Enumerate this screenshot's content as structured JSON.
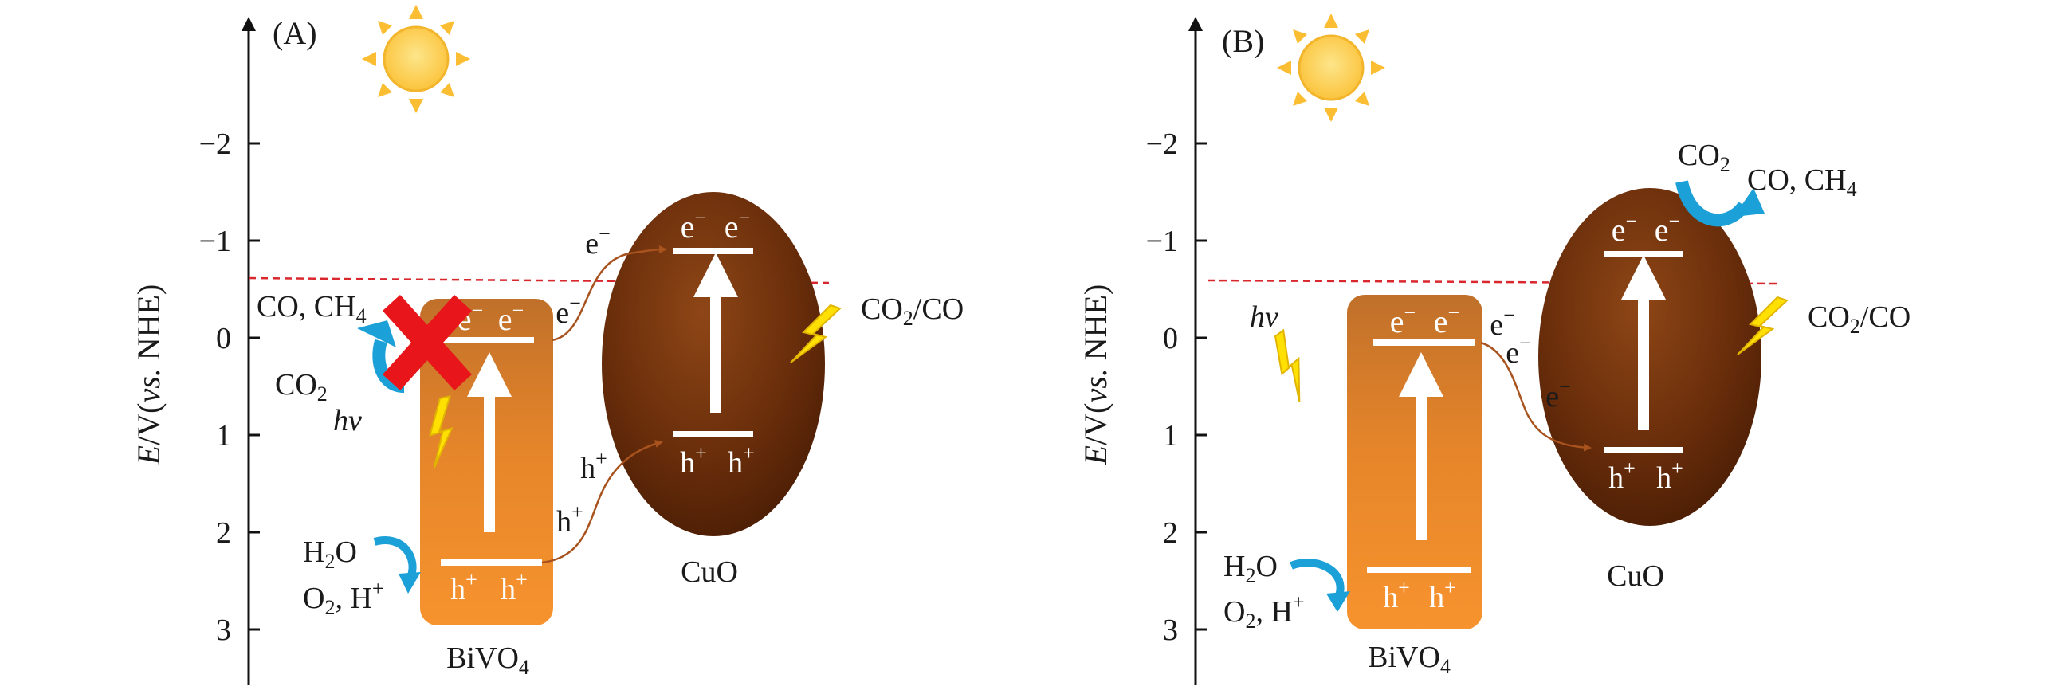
{
  "panels": [
    {
      "label": "(A)",
      "axis_label_e": "E",
      "axis_label_v": "/V(",
      "axis_label_vs": "vs.",
      "axis_label_nhe": " NHE)",
      "ticks": [
        "−2",
        "−1",
        "0",
        "1",
        "2",
        "3"
      ],
      "semiconductor_1": "BiVO",
      "semiconductor_1_sub": "4",
      "semiconductor_2": "CuO",
      "redox_couple": "CO",
      "redox_couple_sub": "2",
      "redox_couple_rest": "/CO",
      "electron": "e",
      "hole": "h",
      "charge_minus": "−",
      "charge_plus": "+",
      "hv": "hv",
      "h2o": "H",
      "h2o_sub": "2",
      "h2o_rest": "O",
      "o2": "O",
      "o2_sub": "2",
      "o2_rest": ", H",
      "co2": "CO",
      "co2_sub": "2",
      "products": "CO, CH",
      "products_sub": "4",
      "blocked_marker": "red-cross-icon"
    },
    {
      "label": "(B)",
      "axis_label_e": "E",
      "axis_label_v": "/V(",
      "axis_label_vs": "vs.",
      "axis_label_nhe": " NHE)",
      "ticks": [
        "−2",
        "−1",
        "0",
        "1",
        "2",
        "3"
      ],
      "semiconductor_1": "BiVO",
      "semiconductor_1_sub": "4",
      "semiconductor_2": "CuO",
      "redox_couple": "CO",
      "redox_couple_sub": "2",
      "redox_couple_rest": "/CO",
      "electron": "e",
      "hole": "h",
      "charge_minus": "−",
      "charge_plus": "+",
      "hv": "hv",
      "h2o": "H",
      "h2o_sub": "2",
      "h2o_rest": "O",
      "o2": "O",
      "o2_sub": "2",
      "o2_rest": ", H",
      "co2": "CO",
      "co2_sub": "2",
      "products": "CO, CH",
      "products_sub": "4"
    }
  ],
  "colors": {
    "bivo4_top": "#c87527",
    "bivo4_bottom": "#f7922d",
    "cuo_light": "#8a4416",
    "cuo_dark": "#4a1c06",
    "sun": "#fcd14d",
    "sun_ray": "#fbbd31",
    "bolt": "#ffe000",
    "arrow_blue": "#1ba0d8",
    "cross": "#e8161b",
    "dash": "#d9272e",
    "transfer": "#a8521d"
  }
}
